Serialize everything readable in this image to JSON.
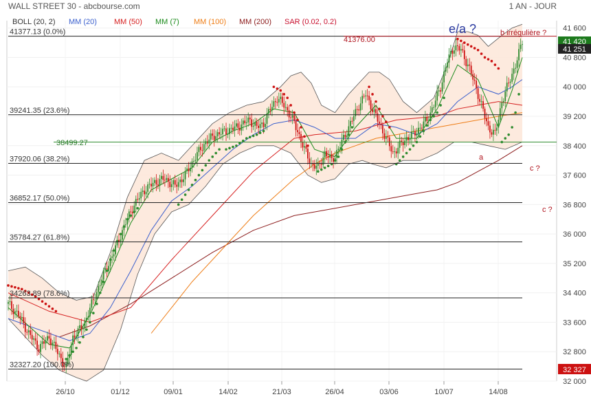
{
  "header": {
    "title": "WALL STREET 30 - abcbourse.com",
    "period": "1 AN - JOUR"
  },
  "indicators": [
    {
      "label": "BOLL (20, 2)",
      "color": "#333333"
    },
    {
      "label": "MM (20)",
      "color": "#3a5fcd"
    },
    {
      "label": "MM (50)",
      "color": "#d61f1f"
    },
    {
      "label": "MM (7)",
      "color": "#1a8a1a"
    },
    {
      "label": "MM (100)",
      "color": "#ee7d16"
    },
    {
      "label": "MM (200)",
      "color": "#8b1a1a"
    },
    {
      "label": "SAR (0.02, 0.2)",
      "color": "#c8102e"
    }
  ],
  "annotations": {
    "ea": "e/a ?",
    "b": "b irrégulière ?",
    "a": "a",
    "c1": "c ?",
    "c2": "c ?",
    "level_41376": "41376.00",
    "level_38499": "38499.27"
  },
  "colors": {
    "up": "#2e8b2e",
    "down": "#cc1111",
    "band_fill": "#fde6d8",
    "sar_up": "#2e8b2e",
    "sar_down": "#cc1111",
    "last_price_bg": "#1d7a1d",
    "low_price_bg": "#cc1111"
  },
  "chart_data": {
    "type": "candlestick",
    "x_tick_labels": [
      "26/10",
      "01/12",
      "09/01",
      "14/02",
      "21/03",
      "26/04",
      "03/06",
      "10/07",
      "14/08"
    ],
    "y_ticks": [
      32000,
      32800,
      33600,
      34400,
      35200,
      36000,
      36800,
      37600,
      38400,
      39200,
      40000,
      40800,
      41600
    ],
    "y_tick_labels": [
      "32 000",
      "32 800",
      "33 600",
      "34 400",
      "35 200",
      "36 000",
      "36 800",
      "37 600",
      "38 400",
      "39 200",
      "40 000",
      "40 800",
      "41 600"
    ],
    "ylim": [
      32000,
      41800
    ],
    "fibonacci_levels": [
      {
        "label": "41377.13 (0.0%)",
        "value": 41377.13
      },
      {
        "label": "39241.35 (23.6%)",
        "value": 39241.35
      },
      {
        "label": "37920.06 (38.2%)",
        "value": 37920.06
      },
      {
        "label": "36852.17 (50.0%)",
        "value": 36852.17
      },
      {
        "label": "35784.27 (61.8%)",
        "value": 35784.27
      },
      {
        "label": "34263.89 (78.6%)",
        "value": 34263.89
      },
      {
        "label": "32327.20 (100.0%)",
        "value": 32327.2
      }
    ],
    "horizontal_lines": [
      41376.0,
      38499.27
    ],
    "last_price": {
      "label": "41 251",
      "value": 41251
    },
    "high_price": {
      "label": "41 420",
      "value": 41420
    },
    "low_price": {
      "label": "32 327",
      "value": 32327
    },
    "close_path": [
      [
        0,
        34100
      ],
      [
        6,
        33800
      ],
      [
        12,
        33300
      ],
      [
        18,
        32900
      ],
      [
        24,
        33200
      ],
      [
        30,
        32700
      ],
      [
        34,
        32350
      ],
      [
        38,
        33200
      ],
      [
        44,
        33500
      ],
      [
        50,
        34200
      ],
      [
        56,
        34900
      ],
      [
        62,
        35500
      ],
      [
        68,
        36200
      ],
      [
        74,
        36800
      ],
      [
        80,
        37200
      ],
      [
        86,
        37400
      ],
      [
        92,
        37500
      ],
      [
        98,
        37300
      ],
      [
        104,
        37600
      ],
      [
        110,
        38100
      ],
      [
        116,
        38500
      ],
      [
        122,
        38700
      ],
      [
        128,
        38800
      ],
      [
        134,
        38900
      ],
      [
        138,
        39000
      ],
      [
        142,
        39100
      ],
      [
        146,
        38900
      ],
      [
        150,
        39000
      ],
      [
        154,
        39400
      ],
      [
        158,
        39700
      ],
      [
        162,
        39500
      ],
      [
        166,
        39200
      ],
      [
        170,
        38800
      ],
      [
        174,
        38300
      ],
      [
        178,
        37900
      ],
      [
        182,
        37800
      ],
      [
        186,
        38200
      ],
      [
        190,
        38000
      ],
      [
        194,
        38300
      ],
      [
        198,
        38700
      ],
      [
        202,
        39100
      ],
      [
        206,
        39500
      ],
      [
        210,
        39800
      ],
      [
        214,
        39400
      ],
      [
        218,
        39000
      ],
      [
        222,
        38600
      ],
      [
        226,
        38200
      ],
      [
        230,
        38400
      ],
      [
        234,
        38600
      ],
      [
        238,
        38700
      ],
      [
        242,
        38900
      ],
      [
        246,
        39100
      ],
      [
        250,
        39500
      ],
      [
        254,
        40000
      ],
      [
        258,
        40700
      ],
      [
        262,
        41100
      ],
      [
        266,
        41000
      ],
      [
        270,
        40600
      ],
      [
        274,
        40100
      ],
      [
        278,
        39500
      ],
      [
        282,
        38900
      ],
      [
        286,
        38700
      ],
      [
        290,
        39600
      ],
      [
        294,
        40100
      ],
      [
        298,
        40600
      ],
      [
        300,
        40900
      ],
      [
        302,
        41251
      ]
    ],
    "sma7_path": [
      [
        0,
        34000
      ],
      [
        12,
        33500
      ],
      [
        24,
        33000
      ],
      [
        36,
        32900
      ],
      [
        48,
        33800
      ],
      [
        60,
        35000
      ],
      [
        72,
        36300
      ],
      [
        84,
        37200
      ],
      [
        96,
        37500
      ],
      [
        108,
        37800
      ],
      [
        120,
        38500
      ],
      [
        132,
        38800
      ],
      [
        144,
        39000
      ],
      [
        156,
        39400
      ],
      [
        168,
        39300
      ],
      [
        180,
        38300
      ],
      [
        192,
        38100
      ],
      [
        204,
        38900
      ],
      [
        216,
        39500
      ],
      [
        228,
        38600
      ],
      [
        240,
        38600
      ],
      [
        252,
        39400
      ],
      [
        264,
        40600
      ],
      [
        276,
        40200
      ],
      [
        288,
        38900
      ],
      [
        296,
        39900
      ],
      [
        302,
        40800
      ]
    ],
    "sma20_path": [
      [
        0,
        33700
      ],
      [
        12,
        33500
      ],
      [
        24,
        33300
      ],
      [
        36,
        33100
      ],
      [
        48,
        33300
      ],
      [
        60,
        34000
      ],
      [
        72,
        35000
      ],
      [
        84,
        36100
      ],
      [
        96,
        36900
      ],
      [
        108,
        37300
      ],
      [
        120,
        37800
      ],
      [
        132,
        38300
      ],
      [
        144,
        38700
      ],
      [
        156,
        39000
      ],
      [
        168,
        39100
      ],
      [
        180,
        38900
      ],
      [
        192,
        38600
      ],
      [
        204,
        38600
      ],
      [
        216,
        39000
      ],
      [
        228,
        38900
      ],
      [
        240,
        38700
      ],
      [
        252,
        39000
      ],
      [
        264,
        39600
      ],
      [
        276,
        40000
      ],
      [
        288,
        39800
      ],
      [
        296,
        40000
      ],
      [
        302,
        40200
      ]
    ],
    "sma50_path": [
      [
        0,
        34400
      ],
      [
        24,
        33900
      ],
      [
        48,
        33600
      ],
      [
        72,
        34000
      ],
      [
        96,
        35300
      ],
      [
        120,
        36500
      ],
      [
        144,
        37700
      ],
      [
        168,
        38600
      ],
      [
        180,
        38700
      ],
      [
        204,
        38800
      ],
      [
        228,
        39100
      ],
      [
        252,
        39200
      ],
      [
        264,
        39400
      ],
      [
        276,
        39500
      ],
      [
        288,
        39600
      ],
      [
        302,
        39500
      ]
    ],
    "sma100_path": [
      [
        84,
        33300
      ],
      [
        96,
        34000
      ],
      [
        108,
        34700
      ],
      [
        120,
        35300
      ],
      [
        132,
        35900
      ],
      [
        144,
        36500
      ],
      [
        156,
        37000
      ],
      [
        168,
        37500
      ],
      [
        180,
        37900
      ],
      [
        192,
        38200
      ],
      [
        204,
        38400
      ],
      [
        216,
        38600
      ],
      [
        228,
        38700
      ],
      [
        240,
        38800
      ],
      [
        252,
        38900
      ],
      [
        264,
        39000
      ],
      [
        276,
        39100
      ],
      [
        288,
        39200
      ],
      [
        302,
        39300
      ]
    ],
    "sma200_path": [
      [
        30,
        33200
      ],
      [
        48,
        33500
      ],
      [
        72,
        34100
      ],
      [
        96,
        34800
      ],
      [
        120,
        35500
      ],
      [
        144,
        36100
      ],
      [
        168,
        36500
      ],
      [
        192,
        36700
      ],
      [
        216,
        36900
      ],
      [
        240,
        37100
      ],
      [
        252,
        37200
      ],
      [
        264,
        37400
      ],
      [
        276,
        37700
      ],
      [
        288,
        38000
      ],
      [
        302,
        38400
      ]
    ],
    "boll_upper_path": [
      [
        0,
        35000
      ],
      [
        10,
        35100
      ],
      [
        20,
        34800
      ],
      [
        30,
        34400
      ],
      [
        40,
        34200
      ],
      [
        50,
        34300
      ],
      [
        60,
        35500
      ],
      [
        70,
        37000
      ],
      [
        80,
        38000
      ],
      [
        90,
        38200
      ],
      [
        100,
        38000
      ],
      [
        110,
        38500
      ],
      [
        120,
        39000
      ],
      [
        130,
        39300
      ],
      [
        140,
        39500
      ],
      [
        150,
        39600
      ],
      [
        160,
        40000
      ],
      [
        166,
        40300
      ],
      [
        172,
        40400
      ],
      [
        178,
        40100
      ],
      [
        184,
        39500
      ],
      [
        192,
        39300
      ],
      [
        200,
        39800
      ],
      [
        206,
        40100
      ],
      [
        212,
        40400
      ],
      [
        218,
        40400
      ],
      [
        224,
        40200
      ],
      [
        232,
        39600
      ],
      [
        240,
        39300
      ],
      [
        250,
        39700
      ],
      [
        258,
        40600
      ],
      [
        264,
        41500
      ],
      [
        270,
        41500
      ],
      [
        276,
        41400
      ],
      [
        282,
        41100
      ],
      [
        290,
        41400
      ],
      [
        296,
        41600
      ],
      [
        302,
        41700
      ]
    ],
    "boll_lower_path": [
      [
        0,
        33700
      ],
      [
        10,
        33200
      ],
      [
        20,
        32700
      ],
      [
        30,
        32300
      ],
      [
        40,
        32100
      ],
      [
        46,
        32000
      ],
      [
        56,
        32300
      ],
      [
        66,
        33400
      ],
      [
        76,
        34900
      ],
      [
        86,
        36000
      ],
      [
        96,
        36600
      ],
      [
        106,
        36800
      ],
      [
        116,
        37300
      ],
      [
        126,
        37900
      ],
      [
        136,
        38200
      ],
      [
        146,
        38400
      ],
      [
        156,
        38400
      ],
      [
        166,
        38200
      ],
      [
        176,
        37600
      ],
      [
        184,
        37400
      ],
      [
        192,
        37500
      ],
      [
        200,
        37900
      ],
      [
        208,
        38000
      ],
      [
        214,
        37900
      ],
      [
        222,
        37800
      ],
      [
        232,
        38000
      ],
      [
        242,
        38000
      ],
      [
        252,
        38200
      ],
      [
        262,
        38500
      ],
      [
        272,
        38500
      ],
      [
        282,
        38400
      ],
      [
        292,
        38300
      ],
      [
        302,
        38500
      ]
    ],
    "sar_segments": [
      {
        "dir": "down",
        "pts": [
          [
            0,
            34600
          ],
          [
            8,
            34500
          ],
          [
            16,
            34300
          ],
          [
            22,
            34100
          ],
          [
            28,
            33900
          ]
        ]
      },
      {
        "dir": "up",
        "pts": [
          [
            34,
            32600
          ],
          [
            40,
            32900
          ],
          [
            44,
            33200
          ],
          [
            48,
            33600
          ],
          [
            52,
            34100
          ],
          [
            56,
            34700
          ],
          [
            60,
            35300
          ],
          [
            64,
            35800
          ],
          [
            70,
            36400
          ],
          [
            76,
            36700
          ]
        ]
      },
      {
        "dir": "up",
        "pts": [
          [
            100,
            36800
          ],
          [
            106,
            37200
          ],
          [
            112,
            37600
          ],
          [
            118,
            38000
          ],
          [
            124,
            38300
          ]
        ]
      },
      {
        "dir": "up",
        "pts": [
          [
            128,
            38300
          ],
          [
            134,
            38400
          ],
          [
            140,
            38600
          ],
          [
            146,
            38700
          ],
          [
            150,
            38800
          ]
        ]
      },
      {
        "dir": "down",
        "pts": [
          [
            156,
            40000
          ],
          [
            160,
            39900
          ],
          [
            164,
            39700
          ],
          [
            168,
            39300
          ],
          [
            172,
            38900
          ],
          [
            176,
            38400
          ]
        ]
      },
      {
        "dir": "up",
        "pts": [
          [
            182,
            37700
          ],
          [
            186,
            37800
          ],
          [
            190,
            37900
          ],
          [
            194,
            38100
          ],
          [
            198,
            38500
          ],
          [
            202,
            38900
          ]
        ]
      },
      {
        "dir": "down",
        "pts": [
          [
            212,
            40000
          ],
          [
            216,
            39600
          ],
          [
            220,
            39200
          ],
          [
            224,
            38900
          ]
        ]
      },
      {
        "dir": "up",
        "pts": [
          [
            228,
            37900
          ],
          [
            232,
            38100
          ],
          [
            236,
            38300
          ],
          [
            240,
            38500
          ],
          [
            244,
            38800
          ],
          [
            248,
            39100
          ],
          [
            252,
            39300
          ],
          [
            256,
            39700
          ]
        ]
      },
      {
        "dir": "down",
        "pts": [
          [
            264,
            41300
          ],
          [
            268,
            41200
          ],
          [
            272,
            41100
          ],
          [
            276,
            41000
          ],
          [
            280,
            40800
          ],
          [
            284,
            40700
          ],
          [
            288,
            40500
          ]
        ]
      },
      {
        "dir": "up",
        "pts": [
          [
            290,
            38500
          ],
          [
            294,
            38700
          ],
          [
            296,
            38900
          ],
          [
            298,
            39300
          ],
          [
            300,
            39800
          ]
        ]
      }
    ]
  }
}
